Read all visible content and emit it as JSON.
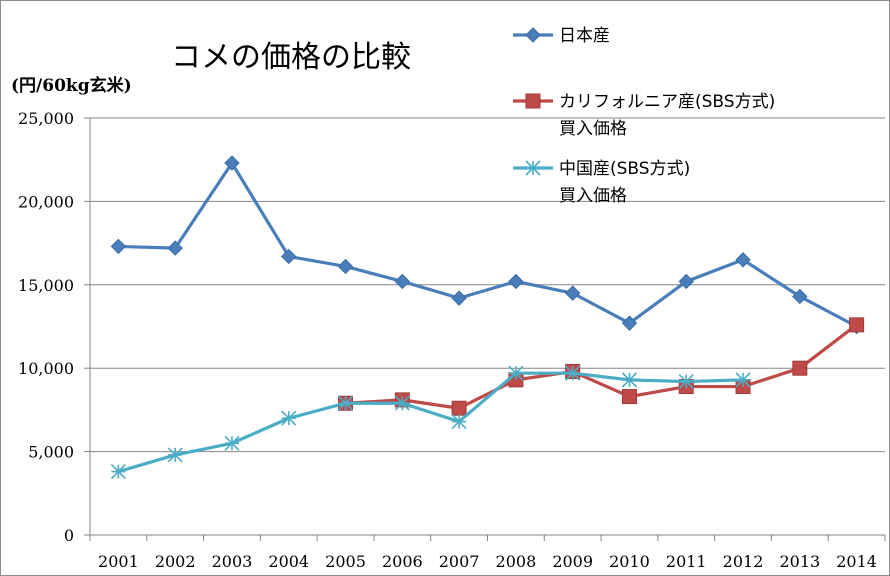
{
  "chart_data": {
    "type": "line",
    "title": "コメの価格の比較",
    "unit_label": "(円/60kg玄米)",
    "categories": [
      "2001",
      "2002",
      "2003",
      "2004",
      "2005",
      "2006",
      "2007",
      "2008",
      "2009",
      "2010",
      "2011",
      "2012",
      "2013",
      "2014"
    ],
    "ylim": [
      0,
      25000
    ],
    "yticks": [
      0,
      5000,
      10000,
      15000,
      20000,
      25000
    ],
    "ytick_labels": [
      "0",
      "5,000",
      "10,000",
      "15,000",
      "20,000",
      "25,000"
    ],
    "grid": true,
    "legend_position": "top-right",
    "series": [
      {
        "name": "日本産",
        "legend_lines": [
          "日本産"
        ],
        "color": "#4a7ebb",
        "marker": "diamond",
        "values": [
          17300,
          17200,
          22300,
          16700,
          16100,
          15200,
          14200,
          15200,
          14500,
          12700,
          15200,
          16500,
          14300,
          12500
        ]
      },
      {
        "name": "カリフォルニア産(SBS方式)買入価格",
        "legend_lines": [
          "カリフォルニア産(SBS方式)",
          "買入価格"
        ],
        "color": "#be4b48",
        "marker": "square",
        "values": [
          null,
          null,
          null,
          null,
          7900,
          8100,
          7600,
          9300,
          9800,
          8300,
          8900,
          8900,
          10000,
          12600
        ]
      },
      {
        "name": "中国産(SBS方式)買入価格",
        "legend_lines": [
          "中国産(SBS方式)",
          "買入価格"
        ],
        "color": "#4bacc6",
        "marker": "asterisk",
        "values": [
          3800,
          4800,
          5500,
          7000,
          7900,
          7900,
          6800,
          9700,
          9700,
          9300,
          9200,
          9300,
          null,
          null
        ]
      }
    ]
  }
}
